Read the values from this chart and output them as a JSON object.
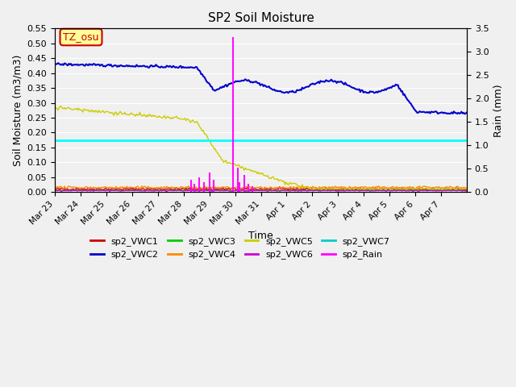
{
  "title": "SP2 Soil Moisture",
  "ylabel_left": "Soil Moisture (m3/m3)",
  "ylabel_right": "Rain (mm)",
  "xlabel": "Time",
  "ylim_left": [
    0.0,
    0.55
  ],
  "ylim_right": [
    0.0,
    3.5
  ],
  "annotation_text": "TZ_osu",
  "annotation_color": "#cc0000",
  "annotation_bg": "#ffff99",
  "hline_value": 0.175,
  "hline_color": "#00ffff",
  "colors": {
    "sp2_VWC1": "#cc0000",
    "sp2_VWC2": "#0000cc",
    "sp2_VWC3": "#00cc00",
    "sp2_VWC4": "#ff8800",
    "sp2_VWC5": "#cccc00",
    "sp2_VWC6": "#cc00cc",
    "sp2_VWC7": "#00cccc",
    "sp2_Rain": "#ff00ff"
  },
  "n_days": 16,
  "xtick_labels": [
    "Mar 23",
    "Mar 24",
    "Mar 25",
    "Mar 26",
    "Mar 27",
    "Mar 28",
    "Mar 29",
    "Mar 30",
    "Mar 31",
    "Apr 1",
    "Apr 2",
    "Apr 3",
    "Apr 4",
    "Apr 5",
    "Apr 6",
    "Apr 7"
  ],
  "yticks_left": [
    0.0,
    0.05,
    0.1,
    0.15,
    0.2,
    0.25,
    0.3,
    0.35,
    0.4,
    0.45,
    0.5,
    0.55
  ],
  "yticks_right": [
    0.0,
    0.5,
    1.0,
    1.5,
    2.0,
    2.5,
    3.0,
    3.5
  ],
  "background_color": "#f0f0f0",
  "grid_color": "#ffffff"
}
